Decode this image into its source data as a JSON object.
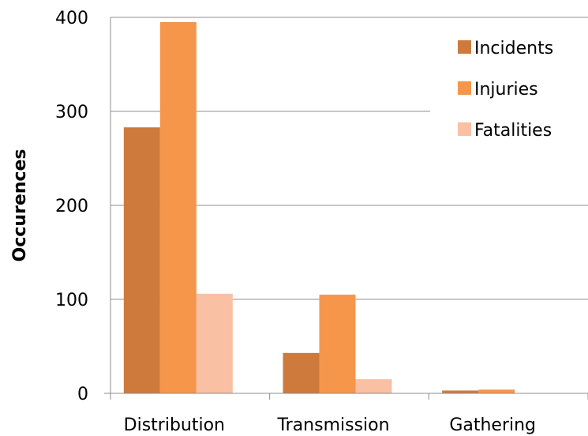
{
  "chart_data": {
    "type": "bar",
    "title": "",
    "xlabel": "",
    "ylabel": "Occurences",
    "categories": [
      "Distribution",
      "Transmission",
      "Gathering"
    ],
    "series": [
      {
        "name": "Incidents",
        "values": [
          283,
          43,
          3
        ],
        "color": "#cd7a3c"
      },
      {
        "name": "Injuries",
        "values": [
          395,
          105,
          4
        ],
        "color": "#f5964b"
      },
      {
        "name": "Fatalities",
        "values": [
          106,
          15,
          0
        ],
        "color": "#f9c0a4"
      }
    ],
    "ylim": [
      0,
      400
    ],
    "yticks": [
      "0",
      "100",
      "200",
      "300",
      "400"
    ],
    "grid": true,
    "legend_position": "top-right"
  }
}
